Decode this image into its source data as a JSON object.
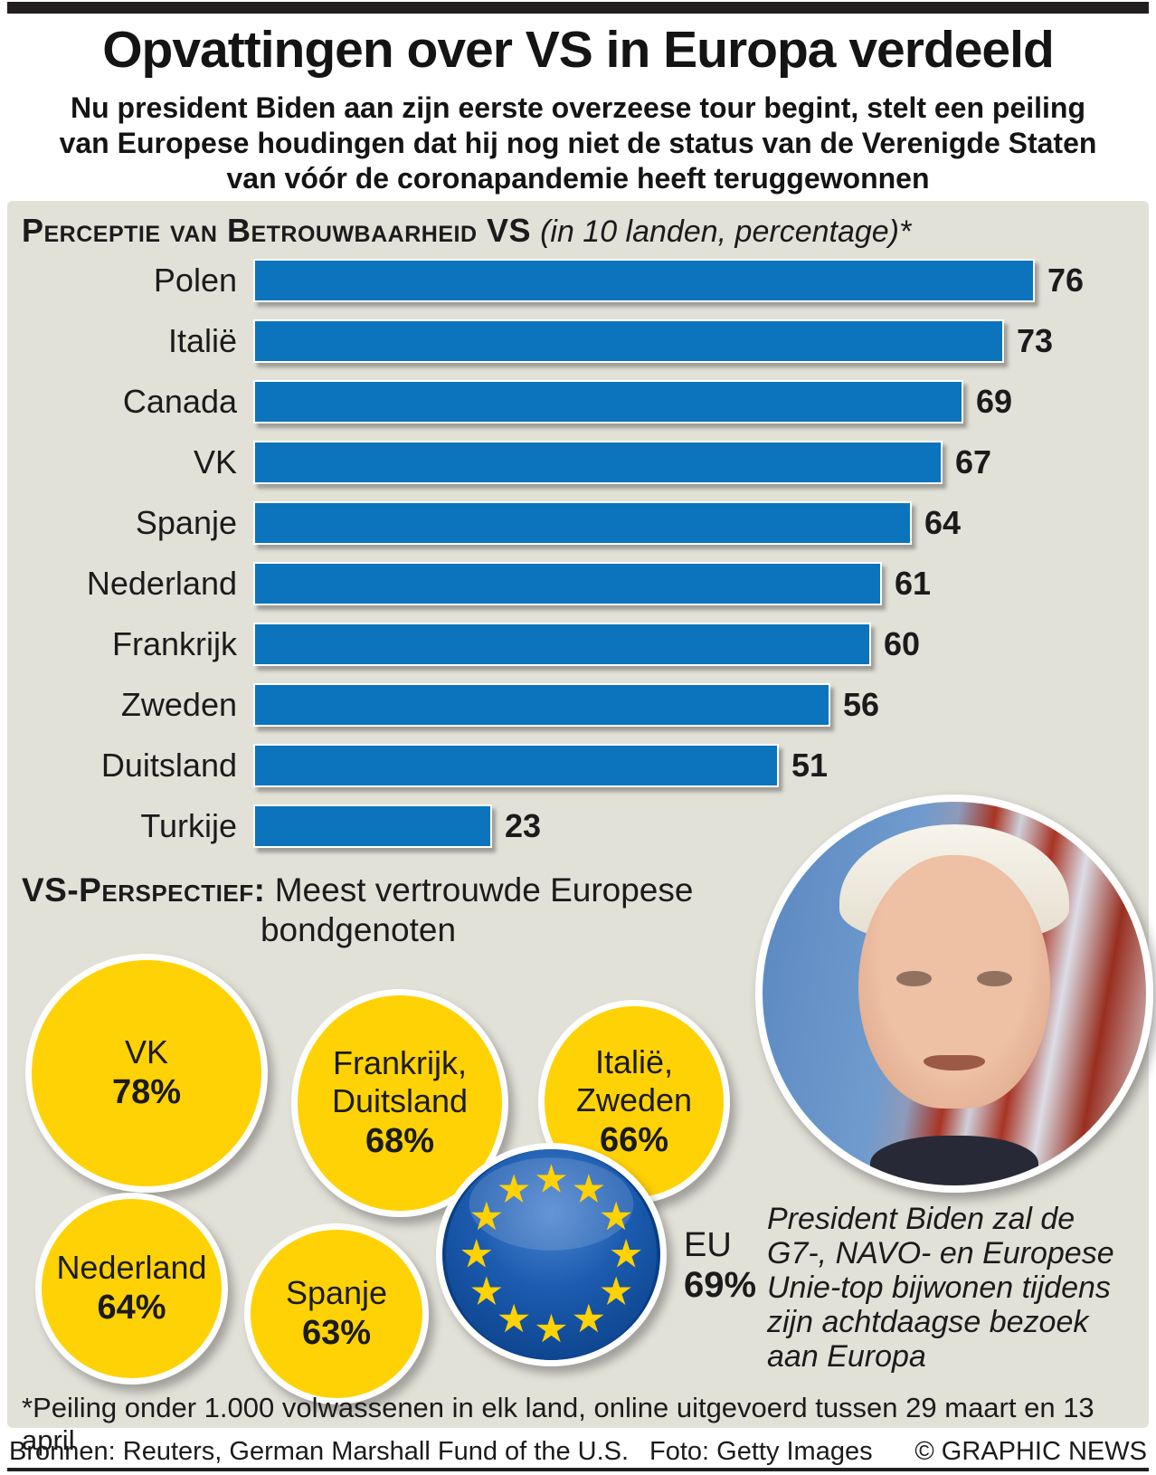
{
  "page": {
    "title": "Opvattingen over VS in Europa verdeeld",
    "subtitle_lines": [
      "Nu president Biden aan zijn eerste overzeese tour begint, stelt een peiling",
      "van Europese houdingen dat hij nog niet de status van de Verenigde Staten",
      "van vóór de coronapandemie heeft teruggewonnen"
    ]
  },
  "chart_data": {
    "type": "bar",
    "orientation": "horizontal",
    "title": "Perceptie van Betrouwbaarheid VS",
    "subtitle_note": "(in 10 landen, percentage)*",
    "categories": [
      "Polen",
      "Italië",
      "Canada",
      "VK",
      "Spanje",
      "Nederland",
      "Frankrijk",
      "Zweden",
      "Duitsland",
      "Turkije"
    ],
    "values": [
      76,
      73,
      69,
      67,
      64,
      61,
      60,
      56,
      51,
      23
    ],
    "xlim": [
      0,
      80
    ],
    "grid": false,
    "bar_color": "#0b74bc",
    "value_labels": "end-of-bar"
  },
  "perspective": {
    "heading_bold": "VS-Perspectief:",
    "heading_rest": " Meest vertrouwde Europese",
    "heading_line2": "bondgenoten",
    "bubbles": [
      {
        "lines": [
          "VK"
        ],
        "pct": "78%"
      },
      {
        "lines": [
          "Frankrijk,",
          "Duitsland"
        ],
        "pct": "68%"
      },
      {
        "lines": [
          "Italië,",
          "Zweden"
        ],
        "pct": "66%"
      },
      {
        "lines": [
          "Nederland"
        ],
        "pct": "64%"
      },
      {
        "lines": [
          "Spanje"
        ],
        "pct": "63%"
      }
    ],
    "eu": {
      "label": "EU",
      "pct": "69%"
    }
  },
  "photo_caption_lines": [
    "President Biden zal de",
    "G7-, NAVO- en Europese",
    "Unie-top bijwonen tijdens",
    "zijn achtdaagse bezoek",
    "aan Europa"
  ],
  "footnote": "*Peiling onder 1.000 volwassenen in elk land, online uitgevoerd tussen 29 maart en 13 april",
  "footer": {
    "sources": "Bronnen: Reuters, German Marshall Fund of the U.S.",
    "photo": "Foto: Getty Images",
    "credit": "© GRAPHIC NEWS"
  },
  "icons": {
    "eu_flag": "circle of 12 yellow stars on blue sphere",
    "biden_photo": "portrait of President Biden"
  },
  "colors": {
    "bar_blue": "#0b74bc",
    "bubble_yellow": "#ffd205",
    "star_yellow": "#ffd205",
    "panel_gray": "#e2e1d8",
    "rule_dark": "#231f20",
    "eu_blue_dark": "#0a3f86",
    "eu_blue_mid": "#1c5cb0"
  }
}
